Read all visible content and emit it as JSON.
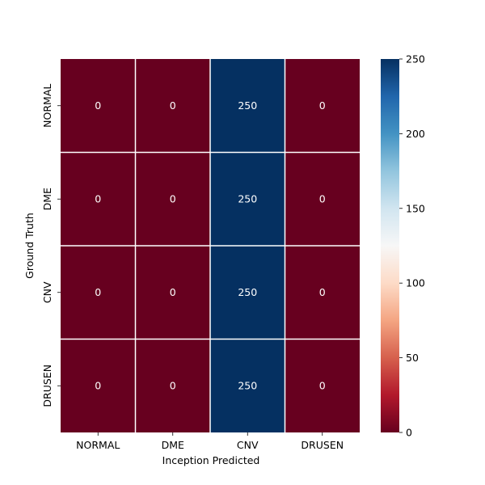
{
  "chart_data": {
    "type": "heatmap",
    "xlabel": "Inception Predicted",
    "ylabel": "Ground Truth",
    "x_categories": [
      "NORMAL",
      "DME",
      "CNV",
      "DRUSEN"
    ],
    "y_categories": [
      "NORMAL",
      "DME",
      "CNV",
      "DRUSEN"
    ],
    "values": [
      [
        0,
        0,
        250,
        0
      ],
      [
        0,
        0,
        250,
        0
      ],
      [
        0,
        0,
        250,
        0
      ],
      [
        0,
        0,
        250,
        0
      ]
    ],
    "colormap": "RdBu",
    "colorbar": {
      "range": [
        0,
        250
      ],
      "ticks": [
        0,
        50,
        100,
        150,
        200,
        250
      ]
    },
    "colors": {
      "low": "#67001f",
      "high": "#053061",
      "grid": "#ffffff"
    }
  }
}
